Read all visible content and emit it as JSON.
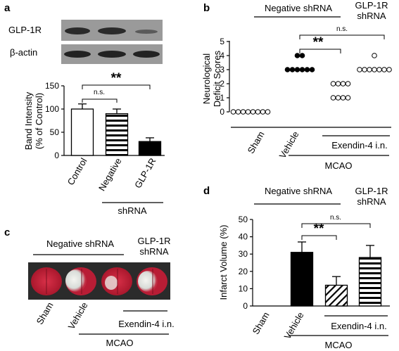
{
  "panels": {
    "a": {
      "label": "a",
      "blot_labels": [
        "GLP-1R",
        "β-actin"
      ],
      "chart_data": {
        "type": "bar",
        "categories": [
          "Control",
          "Negative",
          "GLP-1R"
        ],
        "values": [
          100,
          90,
          30
        ],
        "errors": [
          11,
          10,
          8
        ],
        "ylabel": "Band Intensity (% of Control)",
        "ylabel_lines": [
          "Band Intensity",
          "(% of Control)"
        ],
        "yticks": [
          0,
          50,
          100,
          150
        ],
        "ylim": [
          0,
          150
        ],
        "group_label": "shRNA",
        "comparisons": [
          {
            "from": "Control",
            "to": "Negative",
            "label": "n.s."
          },
          {
            "from": "Control",
            "to": "GLP-1R",
            "label": "**"
          }
        ]
      }
    },
    "b": {
      "label": "b",
      "header_left": "Negative shRNA",
      "header_right_lines": [
        "GLP-1R",
        "shRNA"
      ],
      "chart_data": {
        "type": "scatter",
        "categories": [
          "Sham",
          "Vehicle",
          "Exendin-4 i.n.",
          "GLP-1R shRNA"
        ],
        "points": [
          [
            0,
            0,
            0,
            0,
            0,
            0,
            0,
            0
          ],
          [
            3,
            3,
            3,
            3,
            3,
            3,
            4,
            4
          ],
          [
            1,
            1,
            1,
            1,
            2,
            2,
            2,
            2
          ],
          [
            3,
            3,
            3,
            3,
            3,
            3,
            3,
            4
          ]
        ],
        "filled": [
          false,
          true,
          false,
          false
        ],
        "ylabel": "Neurological Deficit Scores",
        "ylabel_lines": [
          "Neurological",
          "Deficit Scores"
        ],
        "yticks": [
          0,
          1,
          2,
          3,
          4,
          5
        ],
        "ylim": [
          0,
          5
        ],
        "comparisons": [
          {
            "from": "Vehicle",
            "to": "Exendin-4 i.n.",
            "label": "**"
          },
          {
            "from": "Vehicle",
            "to": "GLP-1R shRNA",
            "label": "n.s."
          }
        ]
      },
      "xlabels": [
        "Sham",
        "Vehicle",
        "Exendin-4 i.n.",
        "MCAO"
      ]
    },
    "c": {
      "label": "c",
      "header_left": "Negative shRNA",
      "header_right_lines": [
        "GLP-1R",
        "shRNA"
      ],
      "xlabels": [
        "Sham",
        "Vehicle",
        "Exendin-4 i.n.",
        "MCAO"
      ]
    },
    "d": {
      "label": "d",
      "header_left": "Negative shRNA",
      "header_right_lines": [
        "GLP-1R",
        "shRNA"
      ],
      "chart_data": {
        "type": "bar",
        "categories": [
          "Sham",
          "Vehicle",
          "Exendin-4 i.n.",
          "GLP-1R shRNA"
        ],
        "values": [
          0,
          31,
          12,
          28
        ],
        "errors": [
          0,
          6,
          5,
          7
        ],
        "ylabel": "Infarct Volume (%)",
        "yticks": [
          0,
          10,
          20,
          30,
          40,
          50
        ],
        "ylim": [
          0,
          50
        ],
        "comparisons": [
          {
            "from": "Vehicle",
            "to": "Exendin-4 i.n.",
            "label": "**"
          },
          {
            "from": "Vehicle",
            "to": "GLP-1R shRNA",
            "label": "n.s."
          }
        ]
      },
      "xlabels": [
        "Sham",
        "Vehicle",
        "Exendin-4 i.n.",
        "MCAO"
      ]
    }
  },
  "colors": {
    "ink": "#000000",
    "blot_bg": "#999999",
    "band": "#2a2a2a",
    "brain_red": "#c0203a"
  }
}
